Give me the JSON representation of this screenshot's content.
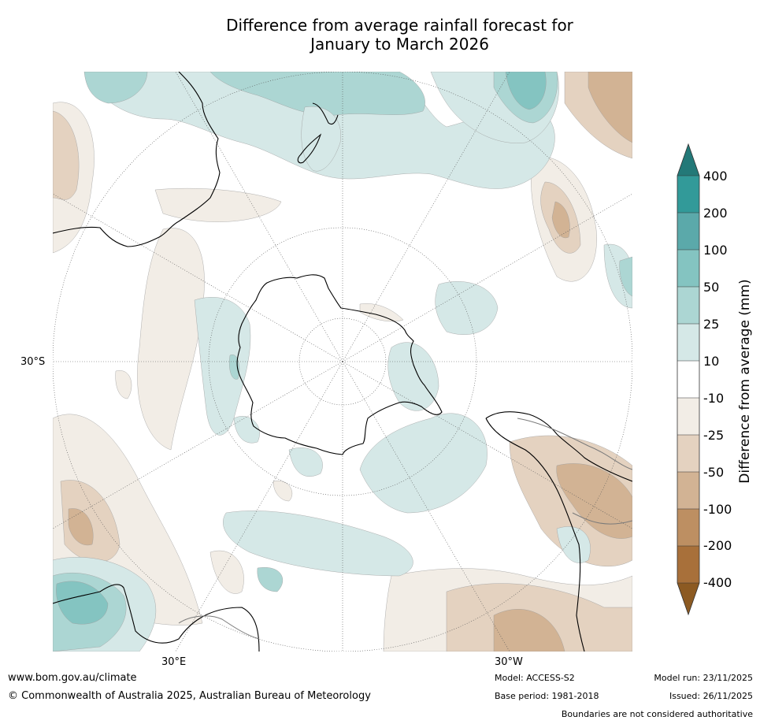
{
  "title": {
    "line1": "Difference from average rainfall forecast for",
    "line2": "January to March 2026"
  },
  "map": {
    "projection": "south-polar-stereographic",
    "lat_label": "30°S",
    "lon_labels": [
      "30°E",
      "30°W"
    ],
    "colors": {
      "neg400": "#8c5a22",
      "neg200": "#a8703a",
      "neg100": "#bd8f62",
      "neg50": "#d2b394",
      "neg25": "#e4d2c0",
      "neg10": "#f2ede6",
      "neutral": "#ffffff",
      "pos10": "#d5e8e7",
      "pos25": "#acd6d3",
      "pos50": "#84c4c1",
      "pos100": "#5ba9aa",
      "pos200": "#329a99",
      "pos400": "#237978"
    }
  },
  "colorbar": {
    "ticks": [
      "400",
      "200",
      "100",
      "50",
      "25",
      "10",
      "-10",
      "-25",
      "-50",
      "-100",
      "-200",
      "-400"
    ],
    "label": "Difference from average (mm)"
  },
  "footer": {
    "url": "www.bom.gov.au/climate",
    "copyright": "© Commonwealth of Australia 2025, Australian Bureau of Meteorology",
    "model": "Model: ACCESS-S2",
    "base_period": "Base period: 1981-2018",
    "model_run": "Model run: 23/11/2025",
    "issued": "Issued: 26/11/2025",
    "disclaimer": "Boundaries are not considered authoritative"
  }
}
